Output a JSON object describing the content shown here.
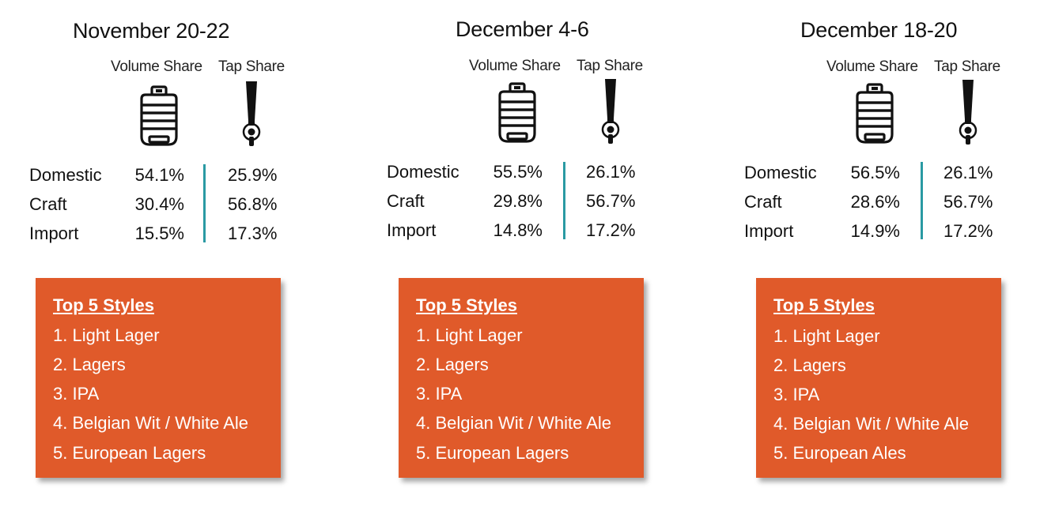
{
  "column_labels": {
    "volume": "Volume Share",
    "tap": "Tap Share"
  },
  "icons": {
    "volume": "keg-icon",
    "tap": "beer-tap-icon"
  },
  "colors": {
    "box_background": "#e05a2a",
    "divider": "#2a9aa3"
  },
  "styles_heading": "Top 5 Styles",
  "panels": [
    {
      "title": "November 20-22",
      "rows": [
        {
          "label": "Domestic",
          "volume": "54.1%",
          "tap": "25.9%"
        },
        {
          "label": "Craft",
          "volume": "30.4%",
          "tap": "56.8%"
        },
        {
          "label": "Import",
          "volume": "15.5%",
          "tap": "17.3%"
        }
      ],
      "styles": [
        "1. Light Lager",
        "2. Lagers",
        "3. IPA",
        "4. Belgian Wit / White Ale",
        "5. European Lagers"
      ]
    },
    {
      "title": "December 4-6",
      "rows": [
        {
          "label": "Domestic",
          "volume": "55.5%",
          "tap": "26.1%"
        },
        {
          "label": "Craft",
          "volume": "29.8%",
          "tap": "56.7%"
        },
        {
          "label": "Import",
          "volume": "14.8%",
          "tap": "17.2%"
        }
      ],
      "styles": [
        "1. Light Lager",
        "2. Lagers",
        "3. IPA",
        "4. Belgian Wit / White Ale",
        "5. European Lagers"
      ]
    },
    {
      "title": "December 18-20",
      "rows": [
        {
          "label": "Domestic",
          "volume": "56.5%",
          "tap": "26.1%"
        },
        {
          "label": "Craft",
          "volume": "28.6%",
          "tap": "56.7%"
        },
        {
          "label": "Import",
          "volume": "14.9%",
          "tap": "17.2%"
        }
      ],
      "styles": [
        "1. Light Lager",
        "2. Lagers",
        "3. IPA",
        "4. Belgian Wit / White Ale",
        "5. European Ales"
      ]
    }
  ]
}
